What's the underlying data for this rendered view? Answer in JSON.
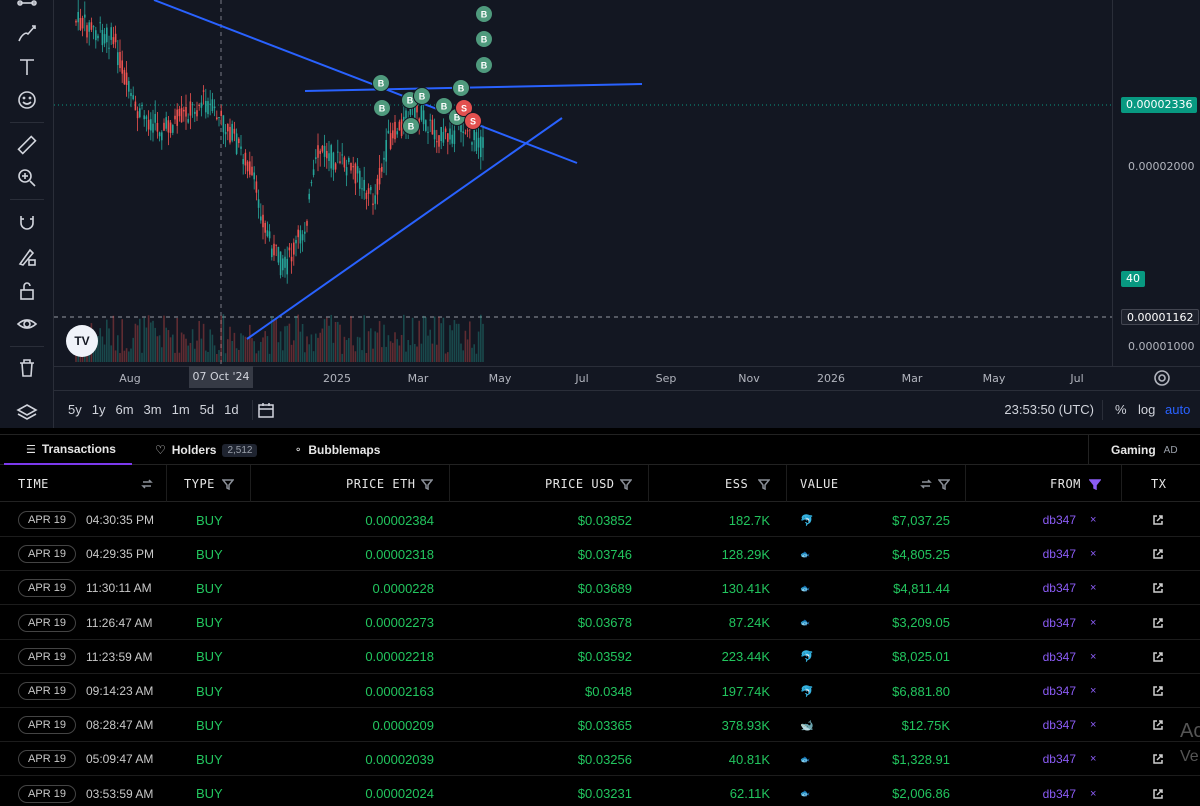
{
  "chart": {
    "price_labels": {
      "current": "0.00002336",
      "mid": "0.00002000",
      "low_line": "0.00001162",
      "bottom": "0.00001000"
    },
    "indicator_badge": "40",
    "time_labels": [
      "Aug",
      "2025",
      "Mar",
      "May",
      "Jul",
      "Sep",
      "Nov",
      "2026",
      "Mar",
      "May",
      "Jul"
    ],
    "crosshair_time": "07 Oct '24",
    "ranges": [
      "5y",
      "1y",
      "6m",
      "3m",
      "1m",
      "5d",
      "1d"
    ],
    "clock": "23:53:50 (UTC)",
    "toggles": {
      "percent": "%",
      "log": "log",
      "auto": "auto"
    },
    "logo": "TV",
    "markers": {
      "buy": "B",
      "sell": "S"
    },
    "colors": {
      "bg": "#131722",
      "up": "#26a69a",
      "down": "#ef5350",
      "trend": "#2962ff",
      "badge": "#089981"
    }
  },
  "tabs": {
    "transactions": "Transactions",
    "holders": "Holders",
    "holders_count": "2,512",
    "bubblemaps": "Bubblemaps",
    "gaming": "Gaming",
    "ad": "AD"
  },
  "table": {
    "headers": {
      "time": "TIME",
      "type": "TYPE",
      "price_eth": "PRICE ETH",
      "price_usd": "PRICE USD",
      "ess": "ESS",
      "value": "VALUE",
      "from": "FROM",
      "tx": "TX"
    },
    "rows": [
      {
        "date": "APR 19",
        "time": "04:30:35 PM",
        "type": "BUY",
        "price_eth": "0.00002384",
        "price_usd": "$0.03852",
        "ess": "182.7K",
        "icon": "dolphin",
        "value": "$7,037.25",
        "from": "db347"
      },
      {
        "date": "APR 19",
        "time": "04:29:35 PM",
        "type": "BUY",
        "price_eth": "0.00002318",
        "price_usd": "$0.03746",
        "ess": "128.29K",
        "icon": "fish",
        "value": "$4,805.25",
        "from": "db347"
      },
      {
        "date": "APR 19",
        "time": "11:30:11 AM",
        "type": "BUY",
        "price_eth": "0.0000228",
        "price_usd": "$0.03689",
        "ess": "130.41K",
        "icon": "fish",
        "value": "$4,811.44",
        "from": "db347"
      },
      {
        "date": "APR 19",
        "time": "11:26:47 AM",
        "type": "BUY",
        "price_eth": "0.00002273",
        "price_usd": "$0.03678",
        "ess": "87.24K",
        "icon": "fish",
        "value": "$3,209.05",
        "from": "db347"
      },
      {
        "date": "APR 19",
        "time": "11:23:59 AM",
        "type": "BUY",
        "price_eth": "0.00002218",
        "price_usd": "$0.03592",
        "ess": "223.44K",
        "icon": "dolphin",
        "value": "$8,025.01",
        "from": "db347"
      },
      {
        "date": "APR 19",
        "time": "09:14:23 AM",
        "type": "BUY",
        "price_eth": "0.00002163",
        "price_usd": "$0.0348",
        "ess": "197.74K",
        "icon": "dolphin",
        "value": "$6,881.80",
        "from": "db347"
      },
      {
        "date": "APR 19",
        "time": "08:28:47 AM",
        "type": "BUY",
        "price_eth": "0.0000209",
        "price_usd": "$0.03365",
        "ess": "378.93K",
        "icon": "whale",
        "value": "$12.75K",
        "from": "db347"
      },
      {
        "date": "APR 19",
        "time": "05:09:47 AM",
        "type": "BUY",
        "price_eth": "0.00002039",
        "price_usd": "$0.03256",
        "ess": "40.81K",
        "icon": "fish",
        "value": "$1,328.91",
        "from": "db347"
      },
      {
        "date": "APR 19",
        "time": "03:53:59 AM",
        "type": "BUY",
        "price_eth": "0.00002024",
        "price_usd": "$0.03231",
        "ess": "62.11K",
        "icon": "fish",
        "value": "$2,006.86",
        "from": "db347"
      }
    ],
    "x_mark": "×"
  },
  "watermark": {
    "line1": "Ac",
    "line2": "Ve"
  }
}
